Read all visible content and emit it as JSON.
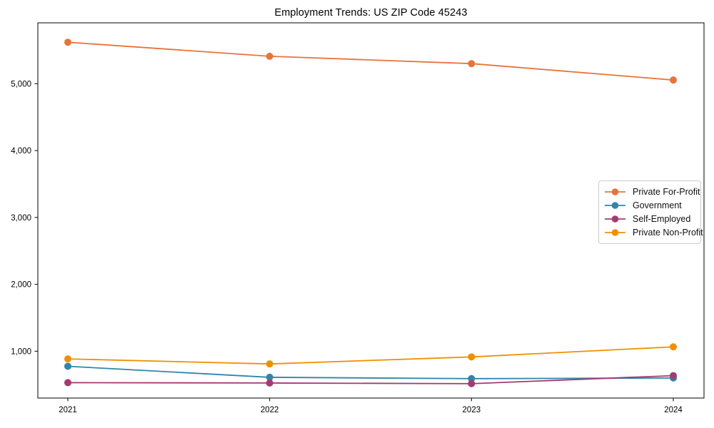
{
  "chart_data": {
    "type": "line",
    "title": "Employment Trends: US ZIP Code 45243",
    "xlabel": "",
    "ylabel": "",
    "x": [
      "2021",
      "2022",
      "2023",
      "2024"
    ],
    "yticks": [
      1000,
      2000,
      3000,
      4000,
      5000
    ],
    "ylim": [
      300,
      5910
    ],
    "grid": false,
    "legend_position": "center-right",
    "marker": "circle",
    "series": [
      {
        "name": "Private For-Profit",
        "color": "#E8743B",
        "values": [
          5620,
          5410,
          5300,
          5055
        ]
      },
      {
        "name": "Government",
        "color": "#2E86AB",
        "values": [
          775,
          610,
          590,
          600
        ]
      },
      {
        "name": "Self-Employed",
        "color": "#A23B72",
        "values": [
          530,
          525,
          515,
          635
        ]
      },
      {
        "name": "Private Non-Profit",
        "color": "#F18F01",
        "values": [
          885,
          810,
          915,
          1065
        ]
      }
    ]
  }
}
